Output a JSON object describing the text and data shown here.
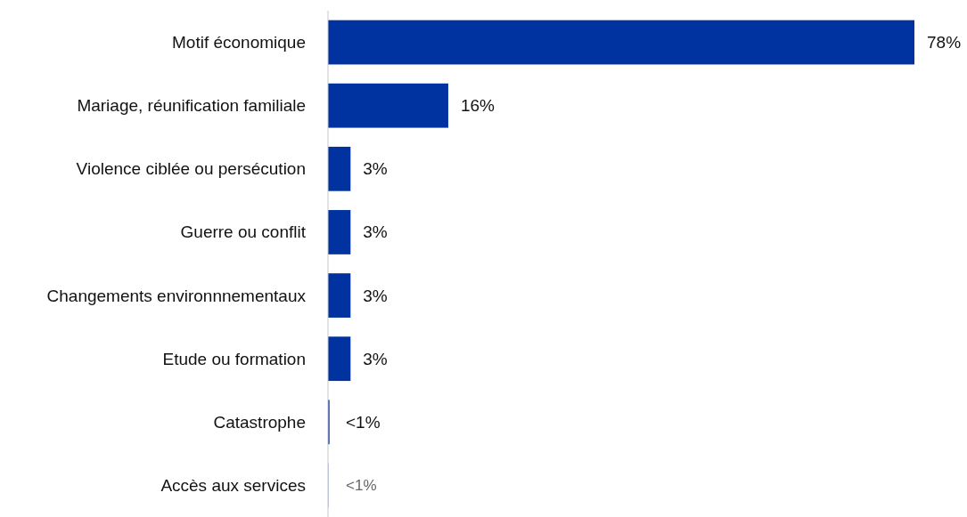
{
  "chart_data": {
    "type": "bar",
    "orientation": "horizontal",
    "categories": [
      "Motif économique",
      "Mariage, réunification familiale",
      "Violence ciblée ou persécution",
      "Guerre ou conflit",
      "Changements environnnementaux",
      "Etude ou formation",
      "Catastrophe",
      "Accès aux services"
    ],
    "values": [
      78,
      16,
      3,
      3,
      3,
      3,
      0.2,
      0.1
    ],
    "colors": [
      "#0033a0",
      "#0033a0",
      "#0033a0",
      "#0033a0",
      "#0033a0",
      "#0033a0",
      "#0033a0",
      "#a9b8e0"
    ],
    "value_labels": [
      "78%",
      "16%",
      "3%",
      "3%",
      "3%",
      "3%",
      "<1%",
      "<1%"
    ]
  }
}
